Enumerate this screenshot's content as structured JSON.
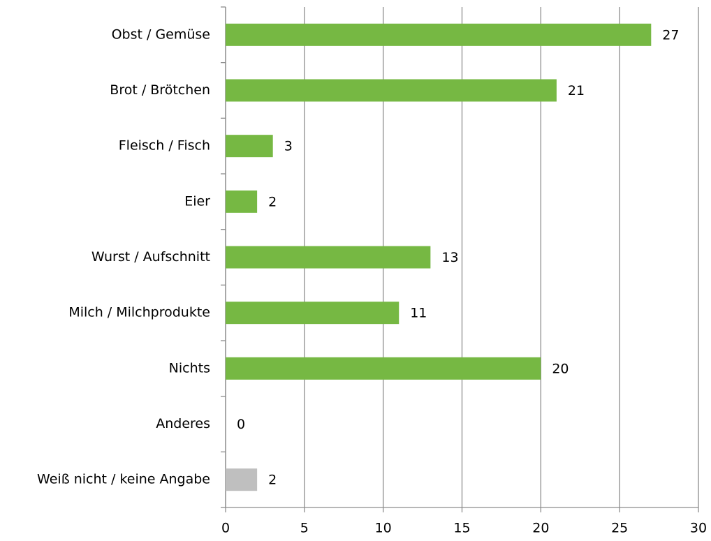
{
  "chart_data": {
    "type": "hbar",
    "categories": [
      "Obst / Gemüse",
      "Brot / Brötchen",
      "Fleisch / Fisch",
      "Eier",
      "Wurst / Aufschnitt",
      "Milch / Milchprodukte",
      "Nichts",
      "Anderes",
      "Weiß nicht / keine Angabe"
    ],
    "values": [
      27,
      21,
      3,
      2,
      13,
      11,
      20,
      0,
      2
    ],
    "colors": [
      "#76b843",
      "#76b843",
      "#76b843",
      "#76b843",
      "#76b843",
      "#76b843",
      "#76b843",
      "#76b843",
      "#bfbfbf"
    ],
    "xlim": [
      0,
      30
    ],
    "xticks": [
      0,
      5,
      10,
      15,
      20,
      25,
      30
    ],
    "grid": true
  }
}
